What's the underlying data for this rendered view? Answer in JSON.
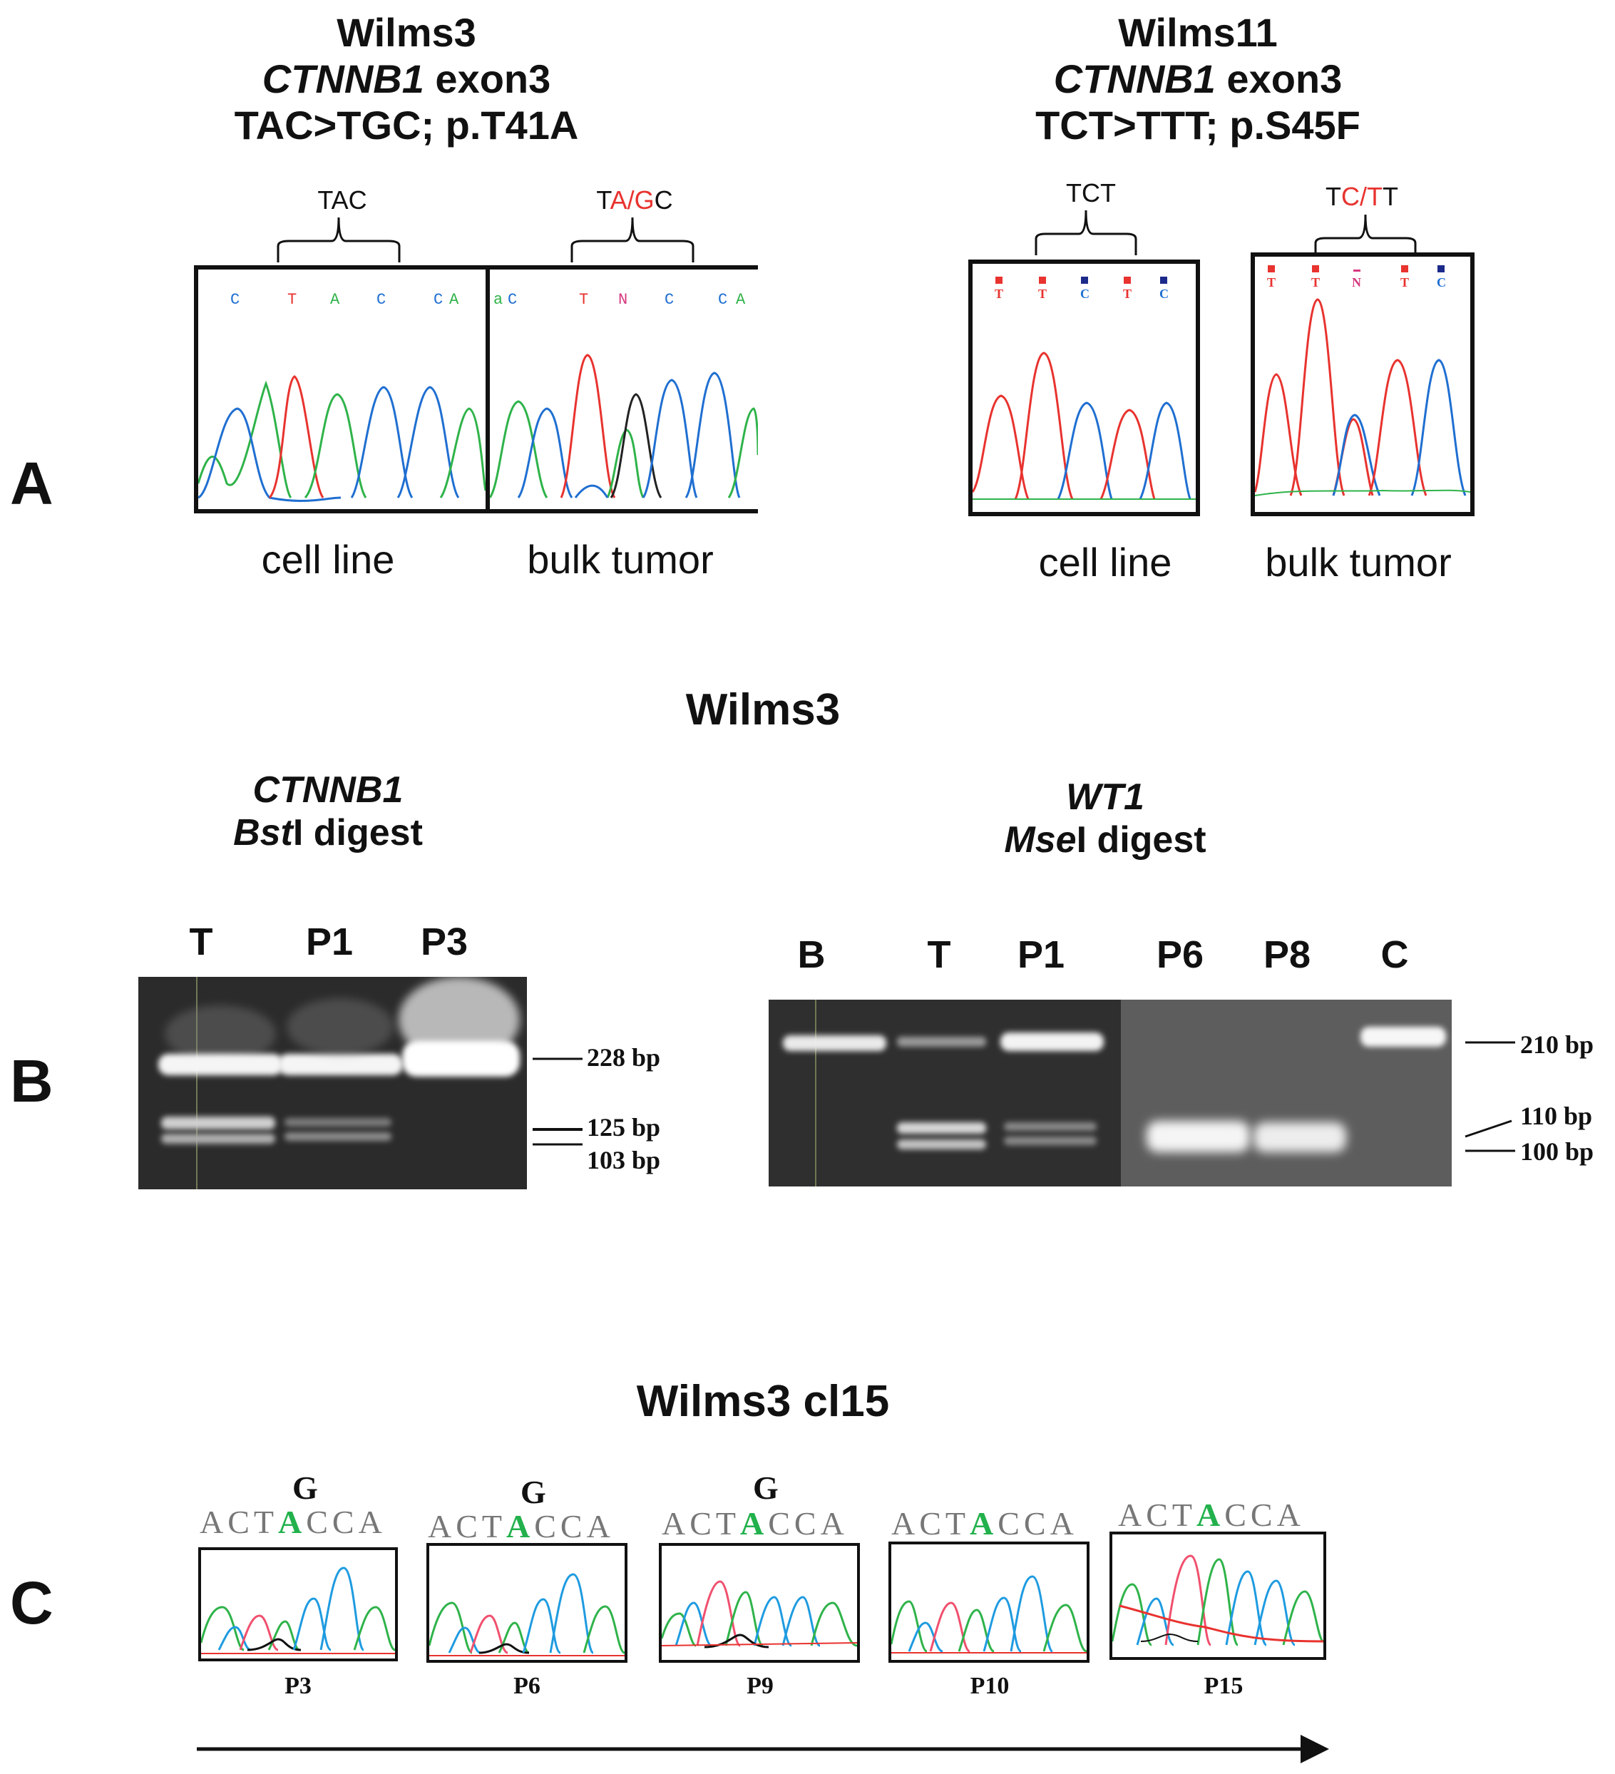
{
  "panelA": {
    "letter": "A",
    "left": {
      "title_line1": "Wilms3",
      "gene": "CTNNB1",
      "exon": " exon3",
      "mutation": "TAC>TGC; p.T41A",
      "cell_line": {
        "codon": "TAC",
        "bases": [
          "C",
          "T",
          "A",
          "C",
          "C",
          "A"
        ],
        "caption": "cell line"
      },
      "bulk_tumor": {
        "codon_pre": "T",
        "codon_mut": "A/G",
        "codon_post": "C",
        "bases": [
          "a",
          "C",
          "T",
          "N",
          "C",
          "C",
          "A"
        ],
        "caption": "bulk tumor"
      }
    },
    "right": {
      "title_line1": "Wilms11",
      "gene": "CTNNB1",
      "exon": " exon3",
      "mutation": "TCT>TTT; p.S45F",
      "cell_line": {
        "codon": "TCT",
        "bases": [
          "T",
          "T",
          "C",
          "T",
          "C"
        ],
        "caption": "cell line"
      },
      "bulk_tumor": {
        "codon_pre": "T",
        "codon_mut": "C/T",
        "codon_post": "T",
        "bases": [
          "T",
          "T",
          "N",
          "T",
          "C"
        ],
        "caption": "bulk tumor"
      }
    }
  },
  "panelB": {
    "letter": "B",
    "heading": "Wilms3",
    "left": {
      "gene": "CTNNB1",
      "enzyme_italic": "Bst",
      "enzyme_rest": "I digest",
      "lanes": [
        "T",
        "P1",
        "P3"
      ],
      "markers": [
        "228 bp",
        "125 bp",
        "103 bp"
      ]
    },
    "right": {
      "gene": "WT1",
      "enzyme_italic": "Mse",
      "enzyme_rest": "I digest",
      "lanes": [
        "B",
        "T",
        "P1",
        "P6",
        "P8",
        "C"
      ],
      "markers": [
        "210 bp",
        "110 bp",
        "100 bp"
      ]
    }
  },
  "panelC": {
    "letter": "C",
    "heading": "Wilms3 cl15",
    "sequence_pre": "ACT",
    "sequence_mut": "A",
    "sequence_post": "CCA",
    "variant_base": "G",
    "passages": [
      "P3",
      "P6",
      "P9",
      "P10",
      "P15"
    ]
  },
  "colors": {
    "A": "#2fb34a",
    "C": "#1f6fd1",
    "G": "#111111",
    "T": "#e8332f",
    "mutation_red": "#e8332f",
    "gel_bg": "#2a2a2a"
  }
}
